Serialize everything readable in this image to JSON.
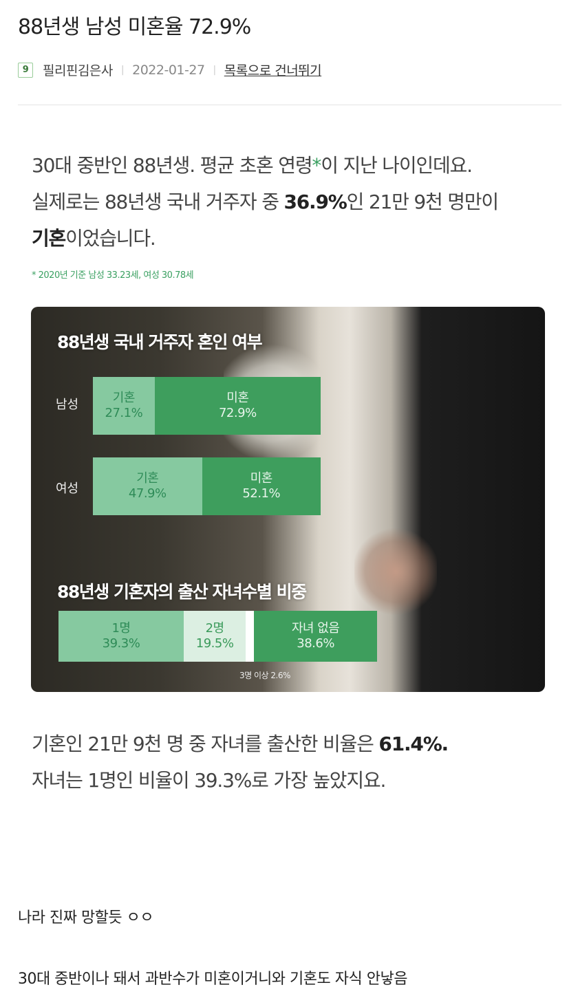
{
  "post": {
    "title": "88년생 남성 미혼율 72.9%",
    "level": "9",
    "author": "필리핀김은사",
    "date": "2022-01-27",
    "skip_link": "목록으로 건너뛰기"
  },
  "body": {
    "p1": {
      "l1a": "30대 중반인 88년생. 평균 초혼 연령",
      "l1ast": "*",
      "l1b": "이 지난 나이인데요.",
      "l2a": "실제로는 88년생 국내 거주자 중 ",
      "l2b": "36.9%",
      "l2c": "인 21만 9천 명만이",
      "l3a": "기혼",
      "l3b": "이었습니다."
    },
    "footnote": "* 2020년 기준 남성 33.23세, 여성 30.78세",
    "p2": {
      "l1a": "기혼인 21만 9천 명 중 자녀를 출산한 비율은 ",
      "l1b": "61.4%.",
      "l2": "자녀는 1명인 비율이 39.3%로 가장 높았지요."
    }
  },
  "chart_data": [
    {
      "type": "bar",
      "stacked": true,
      "orientation": "horizontal",
      "title": "88년생 국내 거주자 혼인 여부",
      "categories": [
        "남성",
        "여성"
      ],
      "series": [
        {
          "name": "기혼",
          "values": [
            27.1,
            47.9
          ],
          "labels": [
            "27.1%",
            "47.9%"
          ]
        },
        {
          "name": "미혼",
          "values": [
            72.9,
            52.1
          ],
          "labels": [
            "72.9%",
            "52.1%"
          ]
        }
      ],
      "colors": {
        "기혼": "#86c9a0",
        "미혼": "#3e9e5d"
      }
    },
    {
      "type": "bar",
      "stacked": true,
      "orientation": "horizontal",
      "title": "88년생 기혼자의 출산 자녀수별 비중",
      "segments": [
        {
          "name": "1명",
          "value": 39.3,
          "label": "39.3%",
          "color": "#86c9a0"
        },
        {
          "name": "2명",
          "value": 19.5,
          "label": "19.5%",
          "color": "#dcefe2"
        },
        {
          "name": "3명 이상",
          "value": 2.6,
          "label": "2.6%",
          "color": "#ffffff"
        },
        {
          "name": "자녀 없음",
          "value": 38.6,
          "label": "38.6%",
          "color": "#3e9e5d"
        }
      ],
      "note": "3명 이상 2.6%"
    }
  ],
  "comments": [
    "나라 진짜 망할듯 ㅇㅇ",
    "30대 중반이나 돼서 과반수가 미혼이거니와 기혼도 자식 안낳음"
  ]
}
